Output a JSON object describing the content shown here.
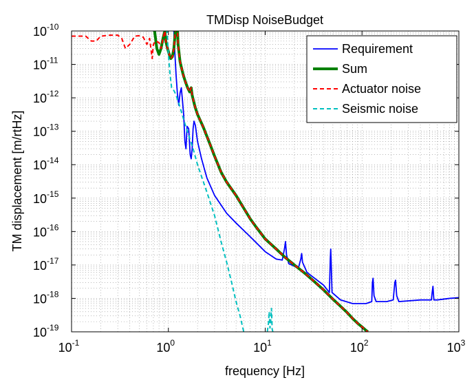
{
  "chart_data": {
    "type": "line",
    "title": "TMDisp NoiseBudget",
    "xlabel": "frequency [Hz]",
    "ylabel": "TM displacement [m/rtHz]",
    "xscale": "log",
    "yscale": "log",
    "xlim": [
      0.1,
      1000
    ],
    "ylim": [
      1e-19,
      1e-10
    ],
    "grid": "on (major and minor, dotted)",
    "legend_position": "top-right",
    "x_ticks": [
      {
        "base": "10",
        "exp": "-1"
      },
      {
        "base": "10",
        "exp": "0"
      },
      {
        "base": "10",
        "exp": "1"
      },
      {
        "base": "10",
        "exp": "2"
      },
      {
        "base": "10",
        "exp": "3"
      }
    ],
    "y_ticks": [
      {
        "base": "10",
        "exp": "-10"
      },
      {
        "base": "10",
        "exp": "-11"
      },
      {
        "base": "10",
        "exp": "-12"
      },
      {
        "base": "10",
        "exp": "-13"
      },
      {
        "base": "10",
        "exp": "-14"
      },
      {
        "base": "10",
        "exp": "-15"
      },
      {
        "base": "10",
        "exp": "-16"
      },
      {
        "base": "10",
        "exp": "-17"
      },
      {
        "base": "10",
        "exp": "-18"
      },
      {
        "base": "10",
        "exp": "-19"
      }
    ],
    "series": [
      {
        "name": "Requirement",
        "color": "#0000ff",
        "style": "solid",
        "points": [
          [
            1.12,
            3e-10
          ],
          [
            1.16,
            3e-11
          ],
          [
            1.2,
            5e-12
          ],
          [
            1.24,
            1.3e-12
          ],
          [
            1.28,
            6e-13
          ],
          [
            1.32,
            1.4e-12
          ],
          [
            1.36,
            2e-12
          ],
          [
            1.4,
            8e-13
          ],
          [
            1.44,
            3e-13
          ],
          [
            1.48,
            5e-14
          ],
          [
            1.52,
            3e-14
          ],
          [
            1.56,
            1.4e-13
          ],
          [
            1.62,
            1.2e-13
          ],
          [
            1.68,
            2e-14
          ],
          [
            1.72,
            1.5e-14
          ],
          [
            1.76,
            3e-14
          ],
          [
            1.8,
            1.2e-13
          ],
          [
            1.84,
            2e-13
          ],
          [
            1.9,
            1.5e-13
          ],
          [
            2.0,
            5e-14
          ],
          [
            2.2,
            1.5e-14
          ],
          [
            2.5,
            4e-15
          ],
          [
            3.0,
            1.2e-15
          ],
          [
            4.0,
            3.5e-16
          ],
          [
            5.0,
            1.8e-16
          ],
          [
            7.0,
            7e-17
          ],
          [
            10.0,
            2.5e-17
          ],
          [
            13.0,
            1.5e-17
          ],
          [
            15.0,
            1.4e-17
          ],
          [
            15.8,
            3e-17
          ],
          [
            16.2,
            5e-17
          ],
          [
            16.6,
            2e-17
          ],
          [
            17.5,
            1.1e-17
          ],
          [
            22.0,
            8e-18
          ],
          [
            23.3,
            1.5e-17
          ],
          [
            23.8,
            2.2e-17
          ],
          [
            24.3,
            1.2e-17
          ],
          [
            27.0,
            6e-18
          ],
          [
            40.0,
            2.5e-18
          ],
          [
            46.0,
            1.5e-18
          ],
          [
            47.0,
            1.5e-17
          ],
          [
            47.5,
            3e-17
          ],
          [
            48.2,
            8e-18
          ],
          [
            49.0,
            1.5e-18
          ],
          [
            60.0,
            9e-19
          ],
          [
            80.0,
            7e-19
          ],
          [
            110.0,
            7e-19
          ],
          [
            126.0,
            8e-19
          ],
          [
            128.0,
            3e-18
          ],
          [
            130.0,
            4e-18
          ],
          [
            133.0,
            1.2e-18
          ],
          [
            140.0,
            8e-19
          ],
          [
            180.0,
            8e-19
          ],
          [
            210.0,
            9e-19
          ],
          [
            218.0,
            3e-18
          ],
          [
            222.0,
            3.5e-18
          ],
          [
            228.0,
            1.2e-18
          ],
          [
            240.0,
            8e-19
          ],
          [
            400.0,
            9e-19
          ],
          [
            520.0,
            9e-19
          ],
          [
            530.0,
            1.5e-18
          ],
          [
            540.0,
            2.3e-18
          ],
          [
            552.0,
            9e-19
          ],
          [
            600.0,
            9e-19
          ],
          [
            800.0,
            1e-18
          ],
          [
            1000.0,
            1.05e-18
          ]
        ]
      },
      {
        "name": "Sum",
        "color": "#008000",
        "style": "solid-thick",
        "points": [
          [
            0.72,
            1e-10
          ],
          [
            0.76,
            3e-11
          ],
          [
            0.8,
            2e-11
          ],
          [
            0.84,
            3e-11
          ],
          [
            0.88,
            6e-11
          ],
          [
            0.92,
            1e-10
          ],
          [
            0.94,
            5e-11
          ],
          [
            0.98,
            3e-11
          ],
          [
            1.02,
            2e-11
          ],
          [
            1.06,
            1.5e-11
          ],
          [
            1.1,
            1.7e-11
          ],
          [
            1.14,
            3e-11
          ],
          [
            1.18,
            1e-10
          ],
          [
            1.22,
            3e-10
          ],
          [
            1.26,
            4e-11
          ],
          [
            1.32,
            1.2e-11
          ],
          [
            1.42,
            5e-12
          ],
          [
            1.5,
            3e-12
          ],
          [
            1.58,
            2e-12
          ],
          [
            1.66,
            1.5e-12
          ],
          [
            1.72,
            2e-12
          ],
          [
            1.76,
            1.2e-12
          ],
          [
            1.82,
            8e-13
          ],
          [
            1.9,
            5e-13
          ],
          [
            2.0,
            3.2e-13
          ],
          [
            2.3,
            1.3e-13
          ],
          [
            2.7,
            4e-14
          ],
          [
            3.0,
            1.8e-14
          ],
          [
            3.5,
            6e-15
          ],
          [
            4.0,
            3e-15
          ],
          [
            5.0,
            1.2e-15
          ],
          [
            6.0,
            5e-16
          ],
          [
            7.0,
            2.4e-16
          ],
          [
            8.0,
            1.4e-16
          ],
          [
            10.0,
            6e-17
          ],
          [
            13.0,
            3e-17
          ],
          [
            16.0,
            1.7e-17
          ],
          [
            20.0,
            1e-17
          ],
          [
            25.0,
            6e-18
          ],
          [
            30.0,
            3.8e-18
          ],
          [
            40.0,
            1.8e-18
          ],
          [
            50.0,
            9.5e-19
          ],
          [
            60.0,
            5.8e-19
          ],
          [
            70.0,
            3.8e-19
          ],
          [
            80.0,
            2.5e-19
          ],
          [
            90.0,
            1.8e-19
          ],
          [
            100.0,
            1.4e-19
          ],
          [
            110.0,
            1.1e-19
          ],
          [
            115.0,
            1e-19
          ]
        ]
      },
      {
        "name": "Actuator noise",
        "color": "#ff0000",
        "style": "dashed",
        "points": [
          [
            0.1,
            7e-11
          ],
          [
            0.14,
            7e-11
          ],
          [
            0.16,
            5e-11
          ],
          [
            0.18,
            5e-11
          ],
          [
            0.2,
            7e-11
          ],
          [
            0.25,
            7.5e-11
          ],
          [
            0.3,
            7.5e-11
          ],
          [
            0.33,
            6e-11
          ],
          [
            0.36,
            3e-11
          ],
          [
            0.4,
            4e-11
          ],
          [
            0.45,
            7e-11
          ],
          [
            0.5,
            7.2e-11
          ],
          [
            0.55,
            6.5e-11
          ],
          [
            0.6,
            4e-11
          ],
          [
            0.64,
            6e-11
          ],
          [
            0.66,
            3e-11
          ],
          [
            0.68,
            1.5e-11
          ],
          [
            0.7,
            4e-11
          ],
          [
            0.74,
            5e-11
          ],
          [
            0.8,
            4.5e-11
          ],
          [
            0.84,
            3e-11
          ],
          [
            0.88,
            6e-11
          ],
          [
            0.92,
            1e-10
          ],
          [
            0.94,
            5e-11
          ],
          [
            0.98,
            3e-11
          ],
          [
            1.02,
            2e-11
          ],
          [
            1.06,
            1.5e-11
          ],
          [
            1.1,
            1.7e-11
          ],
          [
            1.14,
            3e-11
          ],
          [
            1.18,
            1e-10
          ],
          [
            1.22,
            3e-10
          ],
          [
            1.26,
            4e-11
          ],
          [
            1.32,
            1.2e-11
          ],
          [
            1.42,
            5e-12
          ],
          [
            1.5,
            3e-12
          ],
          [
            1.58,
            2e-12
          ],
          [
            1.66,
            1.5e-12
          ],
          [
            1.72,
            2e-12
          ],
          [
            1.76,
            1.2e-12
          ],
          [
            1.82,
            8e-13
          ],
          [
            1.9,
            5e-13
          ],
          [
            2.0,
            3.2e-13
          ],
          [
            2.3,
            1.3e-13
          ],
          [
            2.7,
            4e-14
          ],
          [
            3.0,
            1.8e-14
          ],
          [
            3.5,
            6e-15
          ],
          [
            4.0,
            3e-15
          ],
          [
            5.0,
            1.2e-15
          ],
          [
            6.0,
            5e-16
          ],
          [
            7.0,
            2.4e-16
          ],
          [
            8.0,
            1.4e-16
          ],
          [
            10.0,
            6e-17
          ],
          [
            13.0,
            3e-17
          ],
          [
            16.0,
            1.7e-17
          ],
          [
            20.0,
            1e-17
          ],
          [
            25.0,
            6e-18
          ],
          [
            30.0,
            3.8e-18
          ],
          [
            40.0,
            1.8e-18
          ],
          [
            50.0,
            9.5e-19
          ],
          [
            60.0,
            5.8e-19
          ],
          [
            70.0,
            3.8e-19
          ],
          [
            80.0,
            2.5e-19
          ],
          [
            90.0,
            1.8e-19
          ],
          [
            100.0,
            1.4e-19
          ],
          [
            110.0,
            1.1e-19
          ],
          [
            115.0,
            1e-19
          ]
        ]
      },
      {
        "name": "Seismic noise",
        "color": "#00bfbf",
        "style": "dashed",
        "points": [
          [
            0.95,
            3e-10
          ],
          [
            1.0,
            2e-11
          ],
          [
            1.04,
            5e-12
          ],
          [
            1.08,
            2e-12
          ],
          [
            1.12,
            1.8e-12
          ],
          [
            1.16,
            1.5e-12
          ],
          [
            1.2,
            1.2e-12
          ],
          [
            1.3,
            6e-13
          ],
          [
            1.5,
            1.5e-13
          ],
          [
            1.8,
            3e-14
          ],
          [
            2.0,
            1e-14
          ],
          [
            2.5,
            1.5e-15
          ],
          [
            3.0,
            3e-16
          ],
          [
            3.5,
            5e-17
          ],
          [
            4.0,
            1.2e-17
          ],
          [
            4.5,
            3e-18
          ],
          [
            5.0,
            8e-19
          ],
          [
            5.5,
            3e-19
          ],
          [
            6.0,
            1e-19
          ],
          null,
          [
            10.5,
            1e-19
          ],
          [
            10.8,
            1.8e-19
          ],
          [
            11.0,
            4e-19
          ],
          [
            11.2,
            1.3e-19
          ],
          [
            11.4,
            2.2e-19
          ],
          [
            11.6,
            5e-19
          ],
          [
            11.8,
            1.2e-19
          ],
          [
            12.0,
            1e-19
          ]
        ]
      }
    ]
  }
}
